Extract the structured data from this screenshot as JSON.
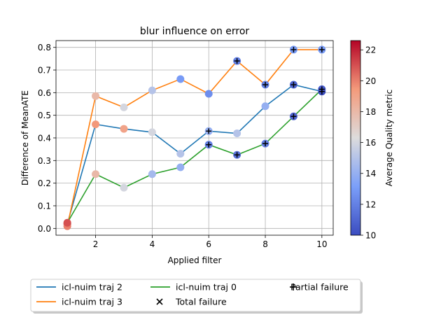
{
  "chart_data": {
    "type": "line",
    "title": "blur influence on error",
    "xlabel": "Applied filter",
    "ylabel": "Difference of MeanATE",
    "xlim": [
      0.6,
      10.4
    ],
    "ylim": [
      -0.03,
      0.83
    ],
    "xticks": [
      2,
      4,
      6,
      8,
      10
    ],
    "yticks": [
      0.0,
      0.1,
      0.2,
      0.3,
      0.4,
      0.5,
      0.6,
      0.7,
      0.8
    ],
    "xtick_labels": [
      "2",
      "4",
      "6",
      "8",
      "10"
    ],
    "ytick_labels": [
      "0.0",
      "0.1",
      "0.2",
      "0.3",
      "0.4",
      "0.5",
      "0.6",
      "0.7",
      "0.8"
    ],
    "grid": true,
    "legend_placement": "below",
    "x": [
      1,
      2,
      3,
      4,
      5,
      6,
      7,
      8,
      9,
      10
    ],
    "series": [
      {
        "name": "icl-nuim traj 2",
        "color": "#1f77b4",
        "values": [
          0.02,
          0.46,
          0.44,
          0.425,
          0.33,
          0.43,
          0.42,
          0.54,
          0.635,
          0.605
        ],
        "quality": [
          21,
          19.5,
          19,
          16,
          15,
          14,
          15,
          14,
          11,
          10
        ],
        "markers": [
          "none",
          "none",
          "none",
          "none",
          "none",
          "partial",
          "none",
          "none",
          "partial",
          "partial"
        ]
      },
      {
        "name": "icl-nuim traj 3",
        "color": "#ff7f0e",
        "values": [
          0.01,
          0.585,
          0.535,
          0.61,
          0.66,
          0.595,
          0.74,
          0.635,
          0.79,
          0.79
        ],
        "quality": [
          20,
          18,
          16,
          15,
          13,
          12.5,
          12,
          12,
          13,
          13
        ],
        "markers": [
          "none",
          "none",
          "none",
          "none",
          "none",
          "none",
          "partial",
          "partial",
          "partial",
          "partial"
        ]
      },
      {
        "name": "icl-nuim traj 0",
        "color": "#2ca02c",
        "values": [
          0.025,
          0.24,
          0.18,
          0.24,
          0.27,
          0.37,
          0.325,
          0.375,
          0.495,
          0.615
        ],
        "quality": [
          21,
          18,
          16,
          14.5,
          14,
          12,
          11.5,
          12,
          11,
          10.5
        ],
        "markers": [
          "none",
          "none",
          "none",
          "none",
          "none",
          "partial",
          "partial",
          "partial",
          "partial",
          "partial"
        ]
      }
    ],
    "marker_legend": [
      {
        "name": "Total failure",
        "symbol": "x"
      },
      {
        "name": "Partial failure",
        "symbol": "+"
      }
    ],
    "colorbar": {
      "label": "Average Quality metric",
      "range": [
        10,
        22.6
      ],
      "ticks": [
        10,
        12,
        14,
        16,
        18,
        20,
        22
      ],
      "tick_labels": [
        "10",
        "12",
        "14",
        "16",
        "18",
        "20",
        "22"
      ],
      "colormap": "coolwarm"
    }
  }
}
